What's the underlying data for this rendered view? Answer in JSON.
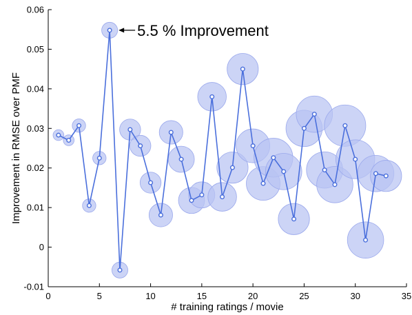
{
  "chart_data": {
    "type": "scatter",
    "xlabel": "# training ratings / movie",
    "ylabel": "Improvement in RMSE over PMF",
    "xlim": [
      0,
      35
    ],
    "ylim": [
      -0.01,
      0.06
    ],
    "xticks": [
      "0",
      "5",
      "10",
      "15",
      "20",
      "25",
      "30",
      "35"
    ],
    "yticks": [
      "-0.01",
      "0",
      "0.01",
      "0.02",
      "0.03",
      "0.04",
      "0.05",
      "0.06"
    ],
    "grid": false,
    "colors": {
      "line": "#4a6fdc",
      "bubble_fill": "#b9c3f2",
      "bubble_stroke": "#9aa8ec"
    },
    "annotation": {
      "text": "5.5 % Improvement",
      "x": 6,
      "y": 0.0548
    },
    "series": [
      {
        "x": [
          1,
          2,
          3,
          4,
          5,
          6,
          7,
          8,
          9,
          10,
          11,
          12,
          13,
          14,
          15,
          16,
          17,
          18,
          19,
          20,
          21,
          22,
          23,
          24,
          25,
          26,
          27,
          28,
          29,
          30,
          31,
          32,
          33
        ],
        "y": [
          0.0283,
          0.027,
          0.0307,
          0.0105,
          0.0225,
          0.0548,
          -0.0058,
          0.0297,
          0.0256,
          0.0163,
          0.0081,
          0.029,
          0.0222,
          0.0118,
          0.0132,
          0.038,
          0.0127,
          0.0201,
          0.045,
          0.0256,
          0.0161,
          0.0226,
          0.0191,
          0.0071,
          0.03,
          0.0336,
          0.0195,
          0.0158,
          0.0307,
          0.0222,
          0.0018,
          0.0186,
          0.018
        ],
        "size": [
          1,
          1,
          2,
          2,
          2,
          3,
          3,
          5,
          5,
          5,
          6,
          6,
          7,
          7,
          7,
          8,
          8,
          9,
          9,
          10,
          10,
          12,
          11,
          9,
          11,
          11,
          11,
          11,
          13,
          12,
          11,
          11,
          9
        ]
      }
    ]
  }
}
